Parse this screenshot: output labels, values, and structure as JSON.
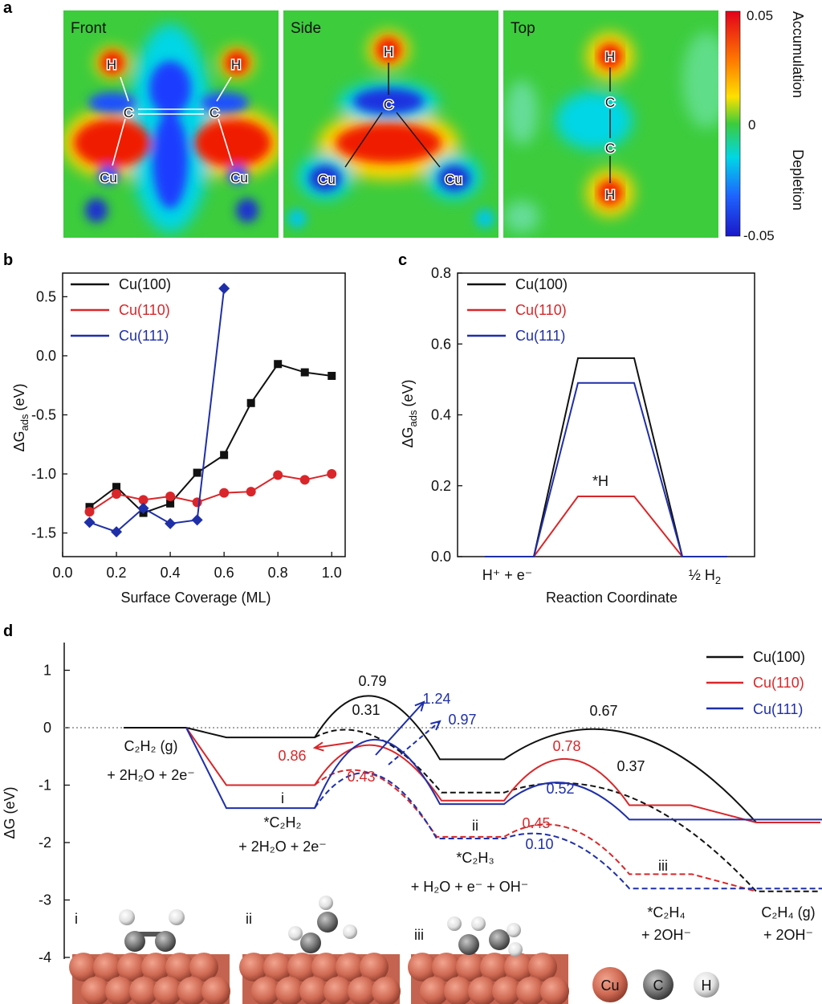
{
  "colors": {
    "cu100": "#111111",
    "cu110": "#d9262a",
    "cu111": "#1f2fa8"
  },
  "panel_a": {
    "label": "a",
    "maps": [
      {
        "title": "Front",
        "atoms": [
          "H",
          "H",
          "C",
          "C",
          "Cu",
          "Cu"
        ]
      },
      {
        "title": "Side",
        "atoms": [
          "H",
          "C",
          "Cu",
          "Cu"
        ]
      },
      {
        "title": "Top",
        "atoms": [
          "H",
          "C",
          "C",
          "H"
        ]
      }
    ],
    "colorbar": {
      "max": "0.05",
      "mid": "0",
      "min": "-0.05",
      "upper_label": "Accumulation",
      "lower_label": "Depletion"
    }
  },
  "chart_data": [
    {
      "type": "line",
      "label": "b",
      "xlabel": "Surface Coverage (ML)",
      "ylabel": "ΔG",
      "ylabel_sub": "ads",
      "ylabel_unit": "(eV)",
      "xlim": [
        0.0,
        1.05
      ],
      "ylim": [
        -1.7,
        0.7
      ],
      "xticks": [
        "0.0",
        "0.2",
        "0.4",
        "0.6",
        "0.8",
        "1.0"
      ],
      "yticks": [
        "-1.5",
        "-1.0",
        "-0.5",
        "0.0",
        "0.5"
      ],
      "legend_position": "top-left",
      "series": [
        {
          "name": "Cu(100)",
          "color": "#111111",
          "marker": "square",
          "x": [
            0.1,
            0.2,
            0.3,
            0.4,
            0.5,
            0.6,
            0.7,
            0.8,
            0.9,
            1.0
          ],
          "y": [
            -1.28,
            -1.11,
            -1.33,
            -1.25,
            -0.99,
            -0.84,
            -0.4,
            -0.07,
            -0.14,
            -0.17
          ]
        },
        {
          "name": "Cu(110)",
          "color": "#d9262a",
          "marker": "circle",
          "x": [
            0.1,
            0.2,
            0.3,
            0.4,
            0.5,
            0.6,
            0.7,
            0.8,
            0.9,
            1.0
          ],
          "y": [
            -1.32,
            -1.17,
            -1.22,
            -1.19,
            -1.24,
            -1.16,
            -1.15,
            -1.01,
            -1.05,
            -1.0
          ]
        },
        {
          "name": "Cu(111)",
          "color": "#1f2fa8",
          "marker": "diamond",
          "x": [
            0.1,
            0.2,
            0.3,
            0.4,
            0.5,
            0.6
          ],
          "y": [
            -1.41,
            -1.49,
            -1.29,
            -1.42,
            -1.39,
            0.57
          ]
        }
      ]
    },
    {
      "type": "line",
      "label": "c",
      "xlabel": "Reaction Coordinate",
      "ylabel": "ΔG",
      "ylabel_sub": "ads",
      "ylabel_unit": "(eV)",
      "ylim": [
        0.0,
        0.8
      ],
      "yticks": [
        "0.0",
        "0.2",
        "0.4",
        "0.6",
        "0.8"
      ],
      "xtick_left": "H⁺ + e⁻",
      "xtick_right_prefix": "½ H",
      "xtick_right_sub": "2",
      "annotation": "*H",
      "legend_position": "top-left",
      "series": [
        {
          "name": "Cu(100)",
          "color": "#111111",
          "levels": [
            0.0,
            0.56,
            0.0
          ]
        },
        {
          "name": "Cu(110)",
          "color": "#d9262a",
          "levels": [
            0.0,
            0.17,
            0.0
          ]
        },
        {
          "name": "Cu(111)",
          "color": "#1f2fa8",
          "levels": [
            0.0,
            0.49,
            0.0
          ]
        }
      ]
    },
    {
      "type": "line",
      "label": "d",
      "ylabel": "ΔG (eV)",
      "ylim": [
        -4,
        1.4
      ],
      "yticks": [
        "-4",
        "-3",
        "-2",
        "-1",
        "0",
        "1"
      ],
      "legend_position": "top-right",
      "states": {
        "initial": {
          "line1": "C₂H₂ (g)",
          "line2": "+ 2H₂O + 2e⁻"
        },
        "i": {
          "roman": "i",
          "line1": "*C₂H₂",
          "line2": "+ 2H₂O + 2e⁻"
        },
        "ii": {
          "roman": "ii",
          "line1": "*C₂H₃",
          "line2": "+ H₂O + e⁻ + OH⁻"
        },
        "iii": {
          "roman": "iii",
          "line1": "*C₂H₄",
          "line2": "+ 2OH⁻"
        },
        "final": {
          "line1": "C₂H₄ (g)",
          "line2": "+ 2OH⁻"
        }
      },
      "series": [
        {
          "name": "Cu(100)",
          "color": "#111111",
          "levels": [
            0,
            -0.17,
            -0.55,
            -1.65
          ],
          "barriers": [
            0.79,
            0.67
          ],
          "dashed_levels": [
            -1.13,
            -2.85
          ],
          "dashed_barriers": [
            0.31,
            0.37
          ]
        },
        {
          "name": "Cu(110)",
          "color": "#d9262a",
          "levels": [
            0,
            -1.0,
            -1.27,
            -1.35,
            -1.65
          ],
          "barriers": [
            0.86,
            0.78
          ],
          "dashed_levels": [
            -1.9,
            -2.55,
            -2.85
          ],
          "dashed_barriers": [
            0.43,
            0.45
          ]
        },
        {
          "name": "Cu(111)",
          "color": "#1f2fa8",
          "levels": [
            0,
            -1.4,
            -1.33,
            -1.6,
            -1.65
          ],
          "barriers": [
            1.24,
            0.52
          ],
          "dashed_levels": [
            -1.93,
            -2.8,
            -2.85
          ],
          "dashed_barriers": [
            0.97,
            0.1
          ]
        }
      ],
      "barrier_labels": [
        {
          "text": "0.79",
          "color": "#111111"
        },
        {
          "text": "0.31",
          "color": "#111111"
        },
        {
          "text": "1.24",
          "color": "#1f2fa8"
        },
        {
          "text": "0.97",
          "color": "#1f2fa8"
        },
        {
          "text": "0.86",
          "color": "#d9262a"
        },
        {
          "text": "0.43",
          "color": "#d9262a"
        },
        {
          "text": "0.67",
          "color": "#111111"
        },
        {
          "text": "0.78",
          "color": "#d9262a"
        },
        {
          "text": "0.37",
          "color": "#111111"
        },
        {
          "text": "0.52",
          "color": "#1f2fa8"
        },
        {
          "text": "0.45",
          "color": "#d9262a"
        },
        {
          "text": "0.10",
          "color": "#1f2fa8"
        }
      ],
      "atom_legend": [
        "Cu",
        "C",
        "H"
      ],
      "snapshots": [
        "i",
        "ii",
        "iii"
      ]
    }
  ]
}
